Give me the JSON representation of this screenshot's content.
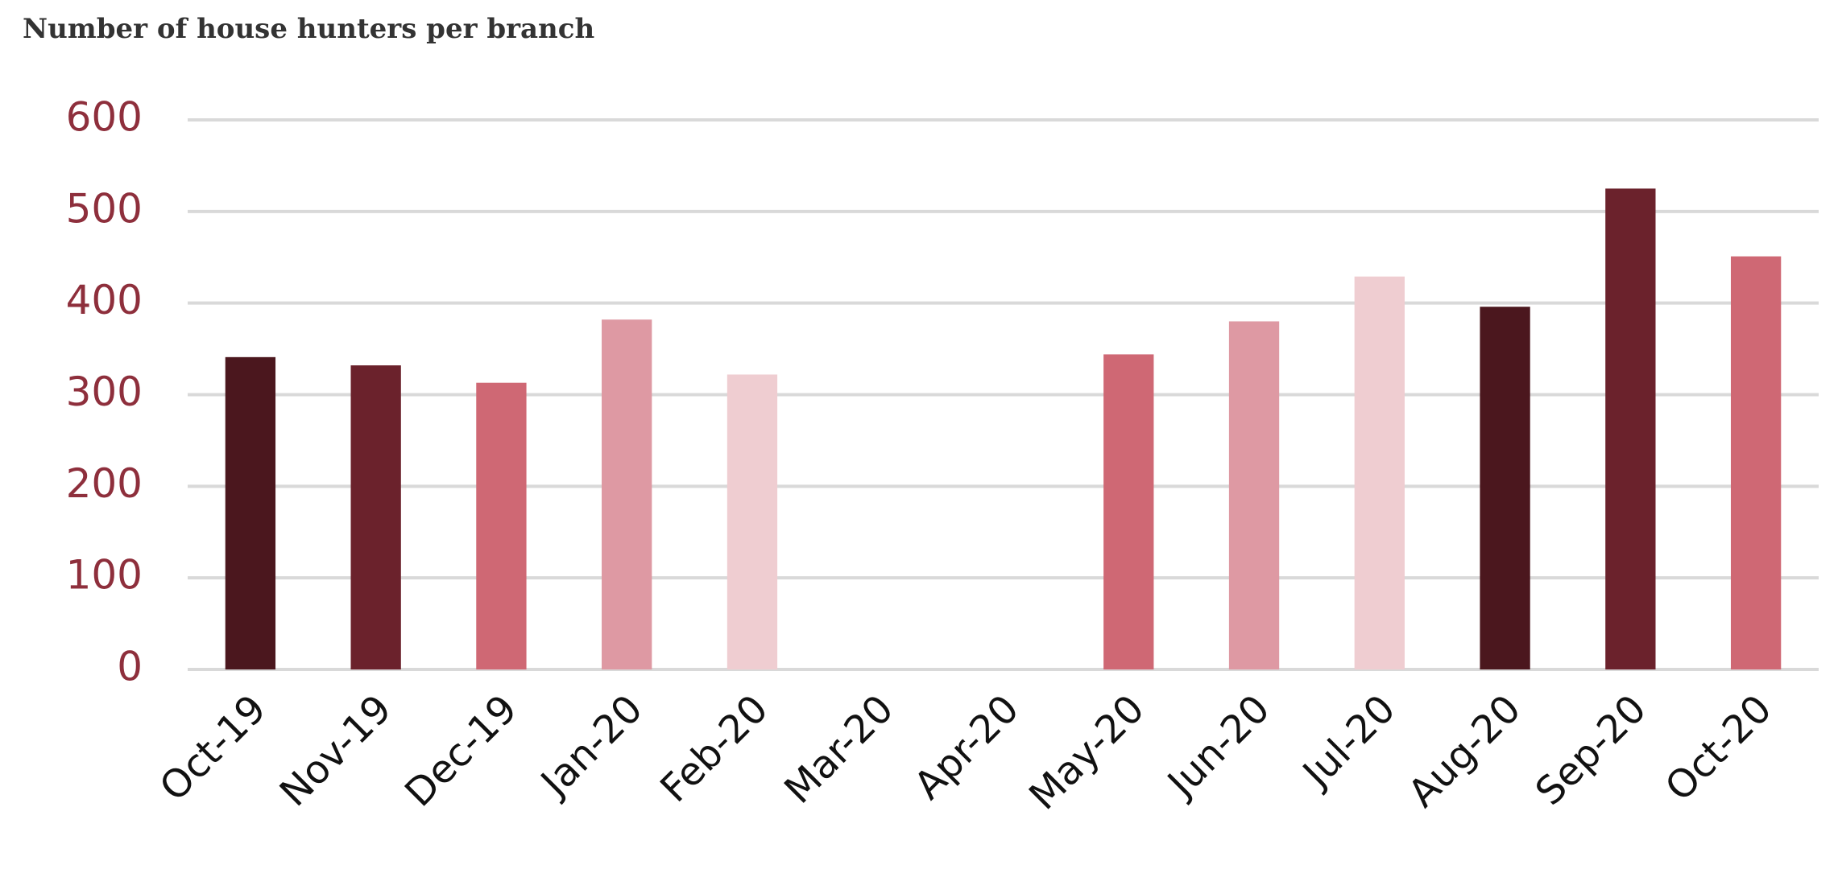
{
  "chart_data": {
    "type": "bar",
    "title": "Number of house hunters per branch",
    "categories": [
      "Oct-19",
      "Nov-19",
      "Dec-19",
      "Jan-20",
      "Feb-20",
      "Mar-20",
      "Apr-20",
      "May-20",
      "Jun-20",
      "Jul-20",
      "Aug-20",
      "Sep-20",
      "Oct-20"
    ],
    "values": [
      341,
      332,
      313,
      382,
      322,
      null,
      null,
      344,
      380,
      429,
      396,
      525,
      451
    ],
    "palette": [
      "#4b171e",
      "#6b222c",
      "#cf6874",
      "#de99a3",
      "#efcdd1"
    ],
    "ylim": [
      0,
      600
    ],
    "yticks": [
      0,
      100,
      200,
      300,
      400,
      500,
      600
    ],
    "grid": true
  }
}
